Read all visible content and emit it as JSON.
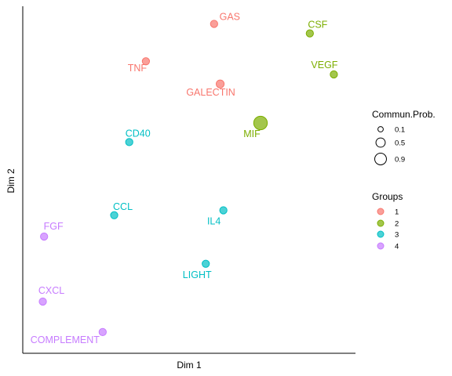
{
  "chart_data": {
    "type": "scatter",
    "xlabel": "Dim 1",
    "ylabel": "Dim 2",
    "grid": false,
    "legend_placement": "right",
    "size_legend": {
      "title": "Commun.Prob.",
      "entries": [
        "0.1",
        "0.5",
        "0.9"
      ]
    },
    "group_legend": {
      "title": "Groups",
      "entries": [
        {
          "name": "1",
          "color": "#F8766D"
        },
        {
          "name": "2",
          "color": "#7CAE00"
        },
        {
          "name": "3",
          "color": "#00BFC4"
        },
        {
          "name": "4",
          "color": "#C77CFF"
        }
      ]
    },
    "points": [
      {
        "label": "GAS",
        "group": "1",
        "x": 5.78,
        "y": 9.75,
        "prob": 0.1
      },
      {
        "label": "TNF",
        "group": "1",
        "x": 3.65,
        "y": 8.61,
        "prob": 0.1
      },
      {
        "label": "GALECTIN",
        "group": "1",
        "x": 5.97,
        "y": 7.92,
        "prob": 0.15
      },
      {
        "label": "CSF",
        "group": "2",
        "x": 8.77,
        "y": 9.46,
        "prob": 0.1
      },
      {
        "label": "VEGF",
        "group": "2",
        "x": 9.52,
        "y": 8.21,
        "prob": 0.1
      },
      {
        "label": "MIF",
        "group": "2",
        "x": 7.23,
        "y": 6.73,
        "prob": 0.9
      },
      {
        "label": "CD40",
        "group": "3",
        "x": 3.13,
        "y": 6.15,
        "prob": 0.1
      },
      {
        "label": "CCL",
        "group": "3",
        "x": 2.66,
        "y": 3.92,
        "prob": 0.1
      },
      {
        "label": "IL4",
        "group": "3",
        "x": 6.07,
        "y": 4.07,
        "prob": 0.1
      },
      {
        "label": "LIGHT",
        "group": "3",
        "x": 5.52,
        "y": 2.44,
        "prob": 0.1
      },
      {
        "label": "FGF",
        "group": "4",
        "x": 0.47,
        "y": 3.27,
        "prob": 0.1
      },
      {
        "label": "CXCL",
        "group": "4",
        "x": 0.43,
        "y": 1.29,
        "prob": 0.1
      },
      {
        "label": "COMPLEMENT",
        "group": "4",
        "x": 2.3,
        "y": 0.36,
        "prob": 0.1
      }
    ]
  }
}
